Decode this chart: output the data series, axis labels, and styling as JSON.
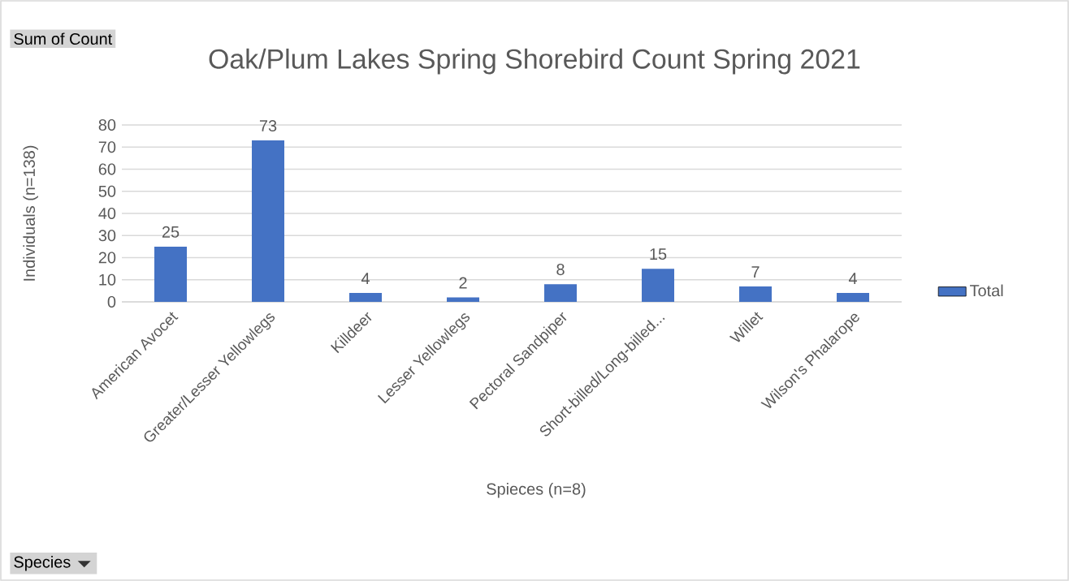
{
  "chart_data": {
    "type": "bar",
    "title": "Oak/Plum Lakes Spring Shorebird Count Spring 2021",
    "xlabel": "Spieces (n=8)",
    "ylabel": "Individuals (n=138)",
    "categories": [
      "American Avocet",
      "Greater/Lesser Yellowlegs",
      "Killdeer",
      "Lesser Yellowlegs",
      "Pectoral Sandpiper",
      "Short-billed/Long-billed...",
      "Willet",
      "Wilson's Phalarope"
    ],
    "series": [
      {
        "name": "Total",
        "color": "#4472c4",
        "values": [
          25,
          73,
          4,
          2,
          8,
          15,
          7,
          4
        ]
      }
    ],
    "ylim": [
      0,
      80
    ],
    "yticks": [
      0,
      10,
      20,
      30,
      40,
      50,
      60,
      70,
      80
    ],
    "grid": "y",
    "legend": "right",
    "data_labels": true,
    "annotations": [
      "Sum of Count",
      "Species"
    ]
  }
}
